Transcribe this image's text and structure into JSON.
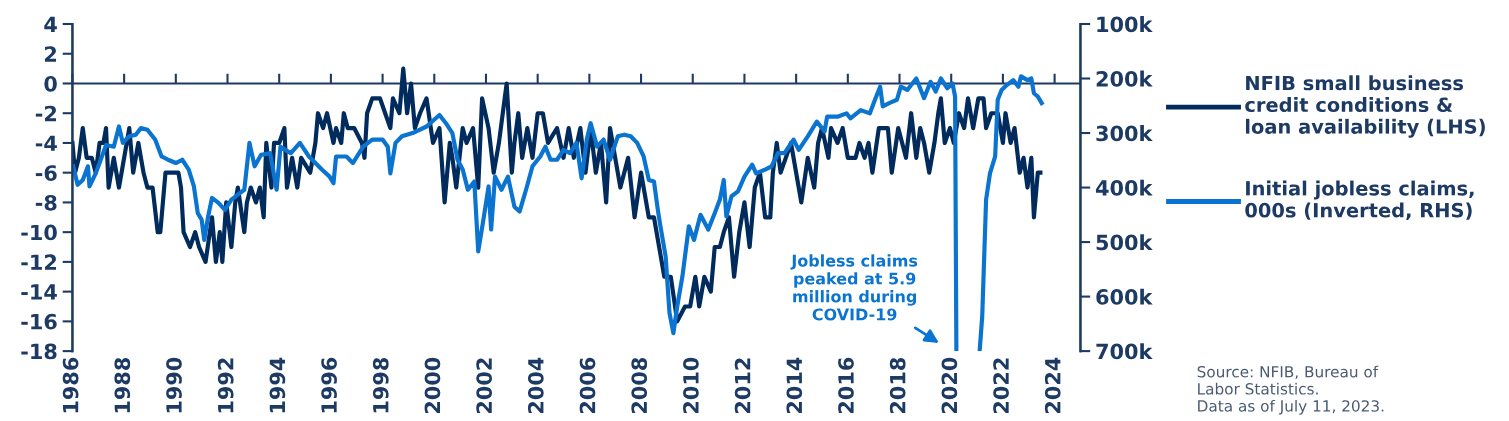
{
  "chart_data": {
    "type": "line",
    "series": [
      {
        "name": "NFIB small business credit conditions & loan availability (LHS)",
        "color": "#002b5c",
        "axis": "y",
        "x": [
          1986.0,
          1986.1,
          1986.25,
          1986.4,
          1986.55,
          1986.75,
          1986.9,
          1987.05,
          1987.2,
          1987.3,
          1987.4,
          1987.6,
          1987.8,
          1988.0,
          1988.2,
          1988.35,
          1988.55,
          1988.75,
          1988.9,
          1989.1,
          1989.3,
          1989.4,
          1989.6,
          1989.85,
          1990.1,
          1990.2,
          1990.3,
          1990.55,
          1990.75,
          1990.9,
          1991.15,
          1991.4,
          1991.55,
          1991.7,
          1991.8,
          1991.95,
          1992.15,
          1992.3,
          1992.4,
          1992.65,
          1992.75,
          1992.9,
          1993.1,
          1993.25,
          1993.4,
          1993.5,
          1993.7,
          1993.8,
          1994.0,
          1994.2,
          1994.3,
          1994.5,
          1994.7,
          1994.85,
          1995.2,
          1995.4,
          1995.5,
          1995.7,
          1995.85,
          1996.1,
          1996.2,
          1996.4,
          1996.5,
          1996.65,
          1996.9,
          1997.2,
          1997.3,
          1997.4,
          1997.6,
          1997.9,
          1998.1,
          1998.3,
          1998.4,
          1998.65,
          1998.8,
          1998.95,
          1999.1,
          1999.25,
          1999.45,
          1999.7,
          1999.95,
          2000.2,
          2000.4,
          2000.6,
          2000.7,
          2000.85,
          2001.1,
          2001.25,
          2001.5,
          2001.7,
          2001.85,
          2002.1,
          2002.3,
          2002.5,
          2002.65,
          2002.8,
          2003.0,
          2003.1,
          2003.25,
          2003.4,
          2003.6,
          2003.8,
          2004.0,
          2004.2,
          2004.4,
          2004.75,
          2005.0,
          2005.2,
          2005.4,
          2005.65,
          2005.85,
          2006.05,
          2006.25,
          2006.45,
          2006.65,
          2006.8,
          2007.0,
          2007.2,
          2007.5,
          2007.75,
          2008.0,
          2008.3,
          2008.5,
          2008.7,
          2008.9,
          2009.15,
          2009.4,
          2009.7,
          2009.9,
          2010.1,
          2010.25,
          2010.45,
          2010.7,
          2010.85,
          2011.05,
          2011.2,
          2011.4,
          2011.6,
          2011.8,
          2012.0,
          2012.2,
          2012.4,
          2012.6,
          2012.8,
          2013.0,
          2013.1,
          2013.25,
          2013.4,
          2013.6,
          2013.8,
          2014.0,
          2014.2,
          2014.45,
          2014.7,
          2014.85,
          2015.0,
          2015.25,
          2015.35,
          2015.6,
          2015.8,
          2016.0,
          2016.3,
          2016.45,
          2016.65,
          2016.8,
          2016.95,
          2017.2,
          2017.55,
          2017.7,
          2017.95,
          2018.25,
          2018.45,
          2018.65,
          2018.8,
          2018.95,
          2019.15,
          2019.35,
          2019.5,
          2019.6,
          2019.75,
          2019.95,
          2020.1,
          2020.3,
          2020.5,
          2020.65,
          2020.85,
          2021.05,
          2021.25,
          2021.35,
          2021.55,
          2021.8,
          2022.0,
          2022.1,
          2022.3,
          2022.45,
          2022.65,
          2022.8,
          2022.95,
          2023.1,
          2023.2,
          2023.35,
          2023.45
        ],
        "values": [
          -4,
          -6,
          -5,
          -3,
          -5,
          -5,
          -6,
          -4,
          -4,
          -3,
          -7,
          -5,
          -7,
          -5,
          -3,
          -6,
          -4,
          -6,
          -7,
          -7,
          -10,
          -10,
          -6,
          -6,
          -6,
          -7,
          -10,
          -11,
          -10,
          -11,
          -12,
          -9,
          -12,
          -10,
          -12,
          -8,
          -11,
          -8,
          -7,
          -10,
          -8,
          -7,
          -8,
          -7,
          -9,
          -4,
          -7,
          -4,
          -4,
          -3,
          -7,
          -5,
          -7,
          -5,
          -6,
          -4,
          -2,
          -3,
          -2,
          -4,
          -3,
          -4,
          -2,
          -3,
          -3,
          -4,
          -5,
          -2,
          -1,
          -1,
          -2,
          -3,
          -1,
          -2,
          1,
          -2,
          0,
          -3,
          -2,
          -1,
          -4,
          -3,
          -8,
          -4,
          -5,
          -7,
          -3,
          -4,
          -3,
          -7,
          -1,
          -3,
          -6,
          -4,
          -2,
          0,
          -6,
          -4,
          -2,
          -5,
          -3,
          -5,
          -2,
          -2,
          -4,
          -3,
          -5,
          -3,
          -5,
          -3,
          -6,
          -3,
          -6,
          -4,
          -8,
          -3,
          -5,
          -7,
          -5,
          -9,
          -6,
          -9,
          -9,
          -11,
          -13,
          -13,
          -16,
          -15,
          -15,
          -13,
          -15,
          -13,
          -14,
          -11,
          -11,
          -10,
          -9,
          -13,
          -10,
          -8,
          -11,
          -7,
          -6,
          -9,
          -9,
          -6,
          -4,
          -6,
          -5,
          -4,
          -6,
          -8,
          -5,
          -7,
          -4,
          -3,
          -5,
          -3,
          -4,
          -3,
          -5,
          -5,
          -4,
          -5,
          -4,
          -6,
          -3,
          -3,
          -6,
          -3,
          -5,
          -2,
          -5,
          -3,
          -4,
          -6,
          -4,
          -2,
          -1,
          -4,
          -3,
          -4,
          -2,
          -3,
          -1,
          -3,
          -1,
          -1,
          -3,
          -2,
          -2,
          -4,
          -2,
          -4,
          -3,
          -6,
          -5,
          -7,
          -5,
          -9,
          -6,
          -6
        ]
      },
      {
        "name": "Initial jobless claims, 000s (Inverted, RHS)",
        "color": "#0a74d0",
        "axis": "y2",
        "x": [
          1986.03,
          1986.2,
          1986.4,
          1986.6,
          1986.66,
          1986.9,
          1987.05,
          1987.3,
          1987.6,
          1987.8,
          1987.95,
          1988.2,
          1988.45,
          1988.65,
          1988.9,
          1989.2,
          1989.45,
          1989.7,
          1990.0,
          1990.25,
          1990.5,
          1990.7,
          1990.85,
          1991.0,
          1991.1,
          1991.25,
          1991.4,
          1991.65,
          1991.9,
          1992.15,
          1992.4,
          1992.65,
          1992.85,
          1993.05,
          1993.3,
          1993.65,
          1993.9,
          1994.05,
          1994.45,
          1994.8,
          1995.15,
          1995.4,
          1995.65,
          1995.95,
          1996.1,
          1996.2,
          1996.6,
          1996.85,
          1997.25,
          1997.6,
          1998.0,
          1998.2,
          1998.3,
          1998.5,
          1998.75,
          1999.16,
          1999.7,
          2000.2,
          2000.45,
          2000.7,
          2000.9,
          2001.1,
          2001.3,
          2001.55,
          2001.7,
          2001.9,
          2002.1,
          2002.2,
          2002.35,
          2002.6,
          2002.85,
          2003.1,
          2003.3,
          2003.55,
          2003.8,
          2004.1,
          2004.3,
          2004.5,
          2004.75,
          2005.0,
          2005.25,
          2005.5,
          2005.7,
          2005.9,
          2006.05,
          2006.3,
          2006.55,
          2006.8,
          2007.1,
          2007.35,
          2007.6,
          2007.85,
          2008.1,
          2008.3,
          2008.5,
          2008.65,
          2008.75,
          2008.95,
          2009.1,
          2009.25,
          2009.4,
          2009.6,
          2009.85,
          2010.05,
          2010.3,
          2010.6,
          2010.85,
          2011.05,
          2011.2,
          2011.3,
          2011.5,
          2011.75,
          2012.0,
          2012.3,
          2012.45,
          2012.8,
          2013.05,
          2013.3,
          2013.55,
          2013.9,
          2014.1,
          2014.45,
          2014.8,
          2015.1,
          2015.2,
          2015.6,
          2015.95,
          2016.1,
          2016.5,
          2016.85,
          2017.05,
          2017.25,
          2017.35,
          2017.6,
          2017.9,
          2018.05,
          2018.3,
          2018.65,
          2018.95,
          2019.2,
          2019.4,
          2019.6,
          2019.85,
          2020.05,
          2020.15,
          2020.2,
          2020.6,
          2021.1,
          2021.2,
          2021.35,
          2021.5,
          2021.7,
          2021.8,
          2021.95,
          2022.15,
          2022.4,
          2022.6,
          2022.7,
          2022.95,
          2023.1,
          2023.2,
          2023.35,
          2023.5
        ],
        "values": [
          361000,
          395000,
          386000,
          361000,
          398000,
          374000,
          355000,
          322000,
          325000,
          288000,
          318000,
          306000,
          303000,
          291000,
          294000,
          312000,
          343000,
          349000,
          355000,
          349000,
          367000,
          398000,
          447000,
          459000,
          496000,
          453000,
          419000,
          428000,
          441000,
          422000,
          413000,
          404000,
          318000,
          361000,
          340000,
          337000,
          404000,
          325000,
          337000,
          318000,
          343000,
          355000,
          367000,
          380000,
          392000,
          343000,
          343000,
          355000,
          325000,
          312000,
          312000,
          325000,
          374000,
          318000,
          306000,
          300000,
          288000,
          267000,
          282000,
          300000,
          349000,
          367000,
          404000,
          389000,
          517000,
          459000,
          398000,
          477000,
          380000,
          404000,
          380000,
          435000,
          444000,
          404000,
          361000,
          343000,
          325000,
          349000,
          349000,
          331000,
          337000,
          318000,
          383000,
          312000,
          282000,
          325000,
          312000,
          349000,
          306000,
          303000,
          306000,
          318000,
          343000,
          386000,
          389000,
          441000,
          471000,
          526000,
          630000,
          667000,
          618000,
          563000,
          471000,
          496000,
          450000,
          477000,
          447000,
          422000,
          386000,
          453000,
          416000,
          407000,
          380000,
          358000,
          374000,
          367000,
          361000,
          337000,
          337000,
          312000,
          331000,
          306000,
          279000,
          297000,
          270000,
          270000,
          264000,
          273000,
          258000,
          264000,
          239000,
          215000,
          251000,
          245000,
          239000,
          215000,
          221000,
          200000,
          236000,
          206000,
          224000,
          200000,
          218000,
          209000,
          233000,
          700000,
          null,
          700000,
          636000,
          422000,
          374000,
          343000,
          239000,
          221000,
          212000,
          203000,
          215000,
          196000,
          203000,
          200000,
          227000,
          233000,
          245000
        ]
      }
    ],
    "xlim": [
      1986,
      2025
    ],
    "xticks": [
      1986,
      1988,
      1990,
      1992,
      1994,
      1996,
      1998,
      2000,
      2002,
      2004,
      2006,
      2008,
      2010,
      2012,
      2014,
      2016,
      2018,
      2020,
      2022,
      2024
    ],
    "ylim": [
      -18,
      4
    ],
    "yticks": [
      -18,
      -16,
      -14,
      -12,
      -10,
      -8,
      -6,
      -4,
      -2,
      0,
      2,
      4
    ],
    "y2lim": [
      700000,
      100000
    ],
    "y2ticks": [
      {
        "value": 100000,
        "label": "100k"
      },
      {
        "value": 200000,
        "label": "200k"
      },
      {
        "value": 300000,
        "label": "300k"
      },
      {
        "value": 400000,
        "label": "400k"
      },
      {
        "value": 500000,
        "label": "500k"
      },
      {
        "value": 600000,
        "label": "600k"
      },
      {
        "value": 700000,
        "label": "700k"
      }
    ],
    "ref_lines": [
      {
        "axis": "y",
        "value": 0,
        "color": "#1c3a63"
      }
    ],
    "annotations": [
      "Jobless claims\npeaked at 5.9\nmillion during\nCOVID-19",
      "Source: NFIB, Bureau of\nLabor Statistics.\nData as of July 11, 2023."
    ],
    "legend": "right",
    "grid": false,
    "line_style": "solid",
    "marker": "none"
  }
}
